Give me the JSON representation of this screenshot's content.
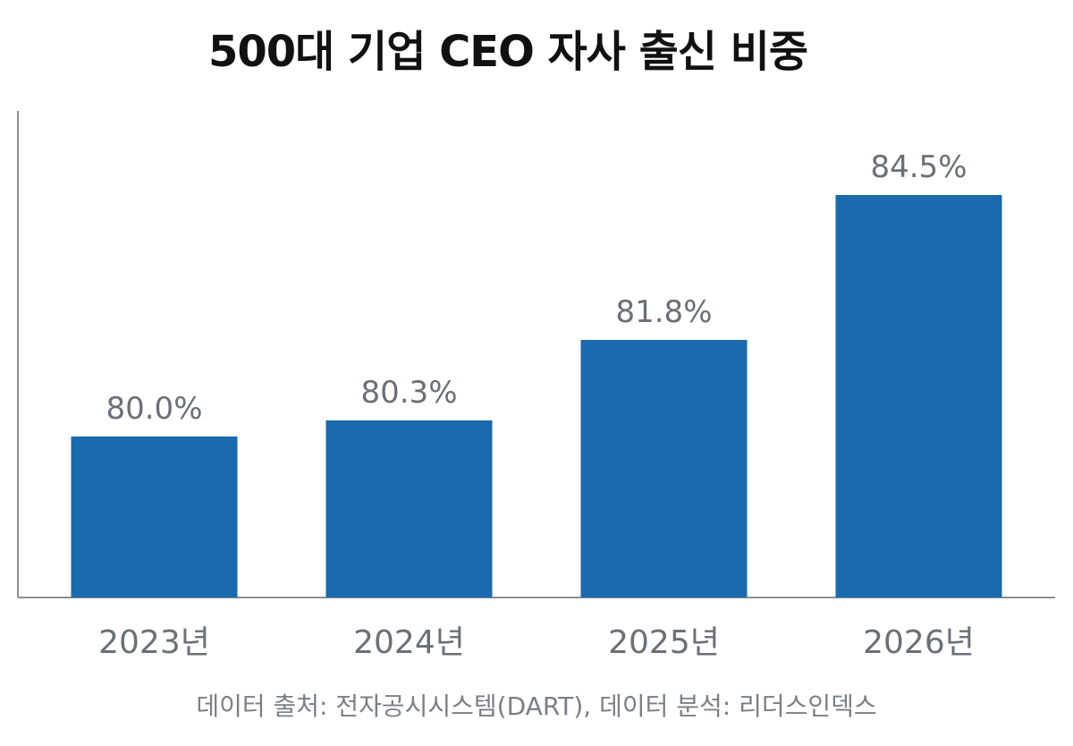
{
  "chart_data": {
    "type": "bar",
    "title": "500대 기업 CEO 자사 출신 비중",
    "categories": [
      "2023년",
      "2024년",
      "2025년",
      "2026년"
    ],
    "values": [
      80.0,
      80.3,
      81.8,
      84.5
    ],
    "value_labels": [
      "80.0%",
      "80.3%",
      "81.8%",
      "84.5%"
    ],
    "xlabel": "",
    "ylabel": "",
    "ylim": [
      75,
      86
    ],
    "grid": false,
    "legend": "none",
    "bar_color": "#1a6aad",
    "source": "데이터 출처: 전자공시시스템(DART), 데이터 분석: 리더스인덱스"
  }
}
